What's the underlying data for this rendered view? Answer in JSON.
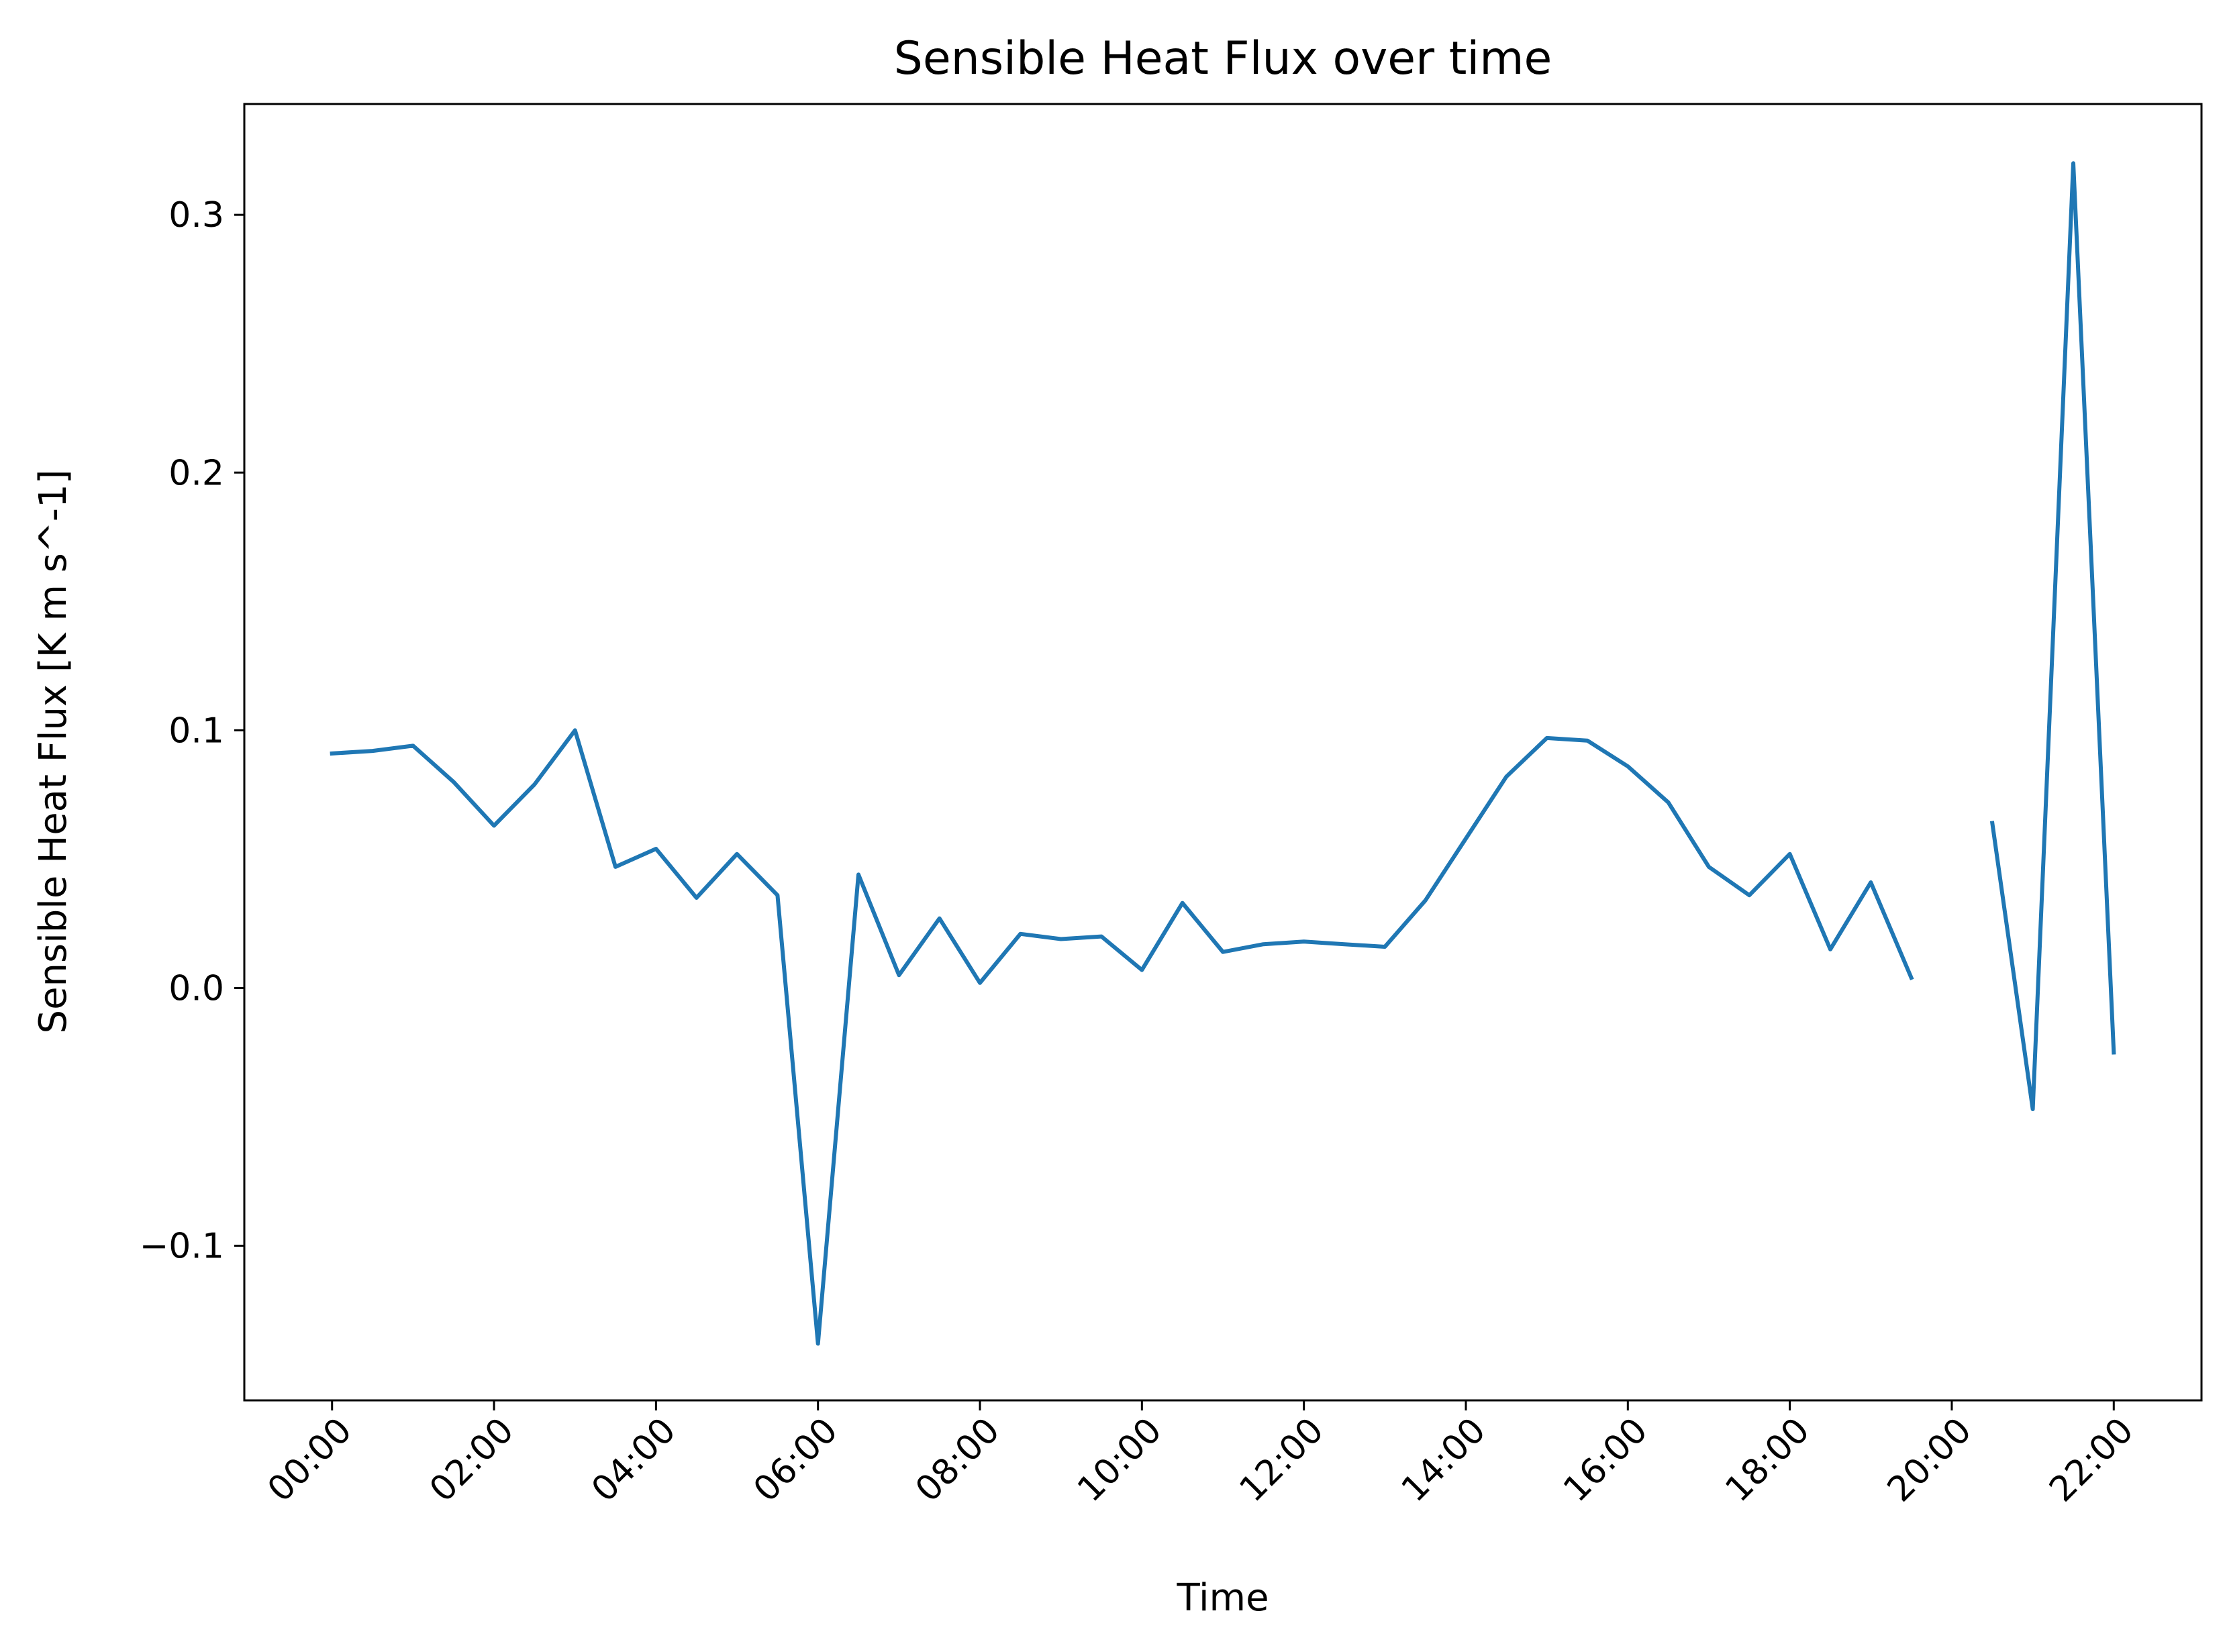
{
  "chart_data": {
    "type": "line",
    "title": "Sensible Heat Flux over time",
    "xlabel": "Time",
    "ylabel": "Sensible Heat Flux [K m s^-1]",
    "x_unit": "HH:MM",
    "xlim": [
      "-01:05",
      "23:05"
    ],
    "ylim": [
      -0.16,
      0.343
    ],
    "x_ticks": [
      "00:00",
      "02:00",
      "04:00",
      "06:00",
      "08:00",
      "10:00",
      "12:00",
      "14:00",
      "16:00",
      "18:00",
      "20:00",
      "22:00"
    ],
    "y_ticks": [
      -0.1,
      0.0,
      0.1,
      0.2,
      0.3
    ],
    "y_tick_labels": [
      "−0.1",
      "0.0",
      "0.1",
      "0.2",
      "0.3"
    ],
    "grid": false,
    "legend": "none",
    "colors": {
      "line": "#1f77b4",
      "axes": "#000000",
      "background": "#ffffff"
    },
    "series": [
      {
        "x": [
          "00:00",
          "00:30",
          "01:00",
          "01:30",
          "02:00",
          "02:30",
          "03:00",
          "03:30",
          "04:00",
          "04:30",
          "05:00",
          "05:30",
          "06:00",
          "06:30",
          "07:00",
          "07:30",
          "08:00",
          "08:30",
          "09:00",
          "09:30",
          "10:00",
          "10:30",
          "11:00",
          "11:30",
          "12:00",
          "12:30",
          "13:00",
          "13:30",
          "14:00",
          "14:30",
          "15:00",
          "15:30",
          "16:00",
          "16:30",
          "17:00",
          "17:30",
          "18:00",
          "18:30",
          "19:00",
          "19:30",
          "20:00",
          "20:30",
          "21:00",
          "21:30",
          "22:00"
        ],
        "values": [
          0.091,
          0.092,
          0.094,
          0.08,
          0.063,
          0.079,
          0.1,
          0.047,
          0.054,
          0.035,
          0.052,
          0.036,
          -0.138,
          0.044,
          0.005,
          0.027,
          0.002,
          0.021,
          0.019,
          0.02,
          0.007,
          0.033,
          0.014,
          0.017,
          0.018,
          0.017,
          0.016,
          0.034,
          0.058,
          0.082,
          0.097,
          0.096,
          0.086,
          0.072,
          0.047,
          0.036,
          0.052,
          0.015,
          0.041,
          0.004,
          null,
          0.064,
          -0.047,
          0.32,
          -0.025
        ]
      }
    ]
  }
}
